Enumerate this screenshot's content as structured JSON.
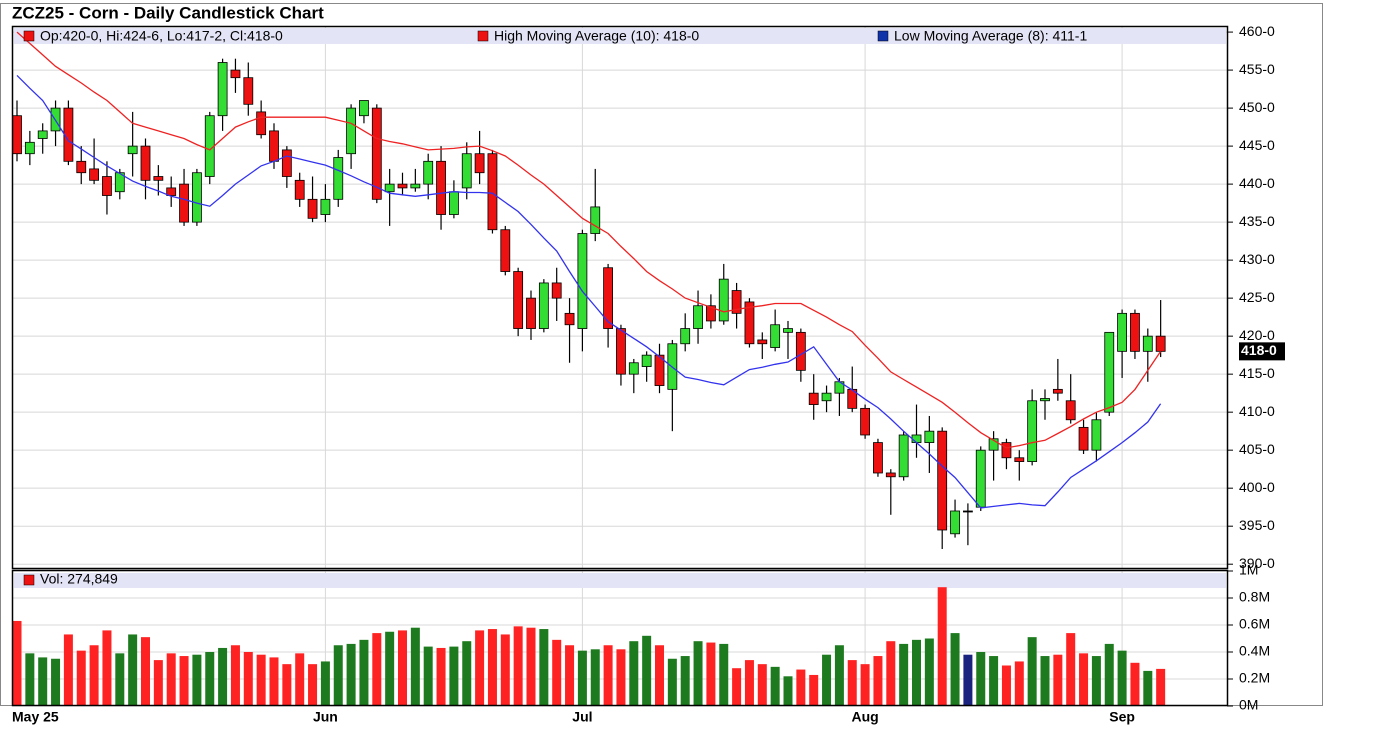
{
  "chart_data": {
    "type": "candlestick",
    "title": "ZCZ25 - Corn - Daily Candlestick Chart",
    "ohlc_legend": "Op:420-0, Hi:424-6, Lo:417-2, Cl:418-0",
    "last_label": "418-0",
    "grid": true,
    "up_color": "#33dd33",
    "down_color": "#ee1111",
    "categories": [
      "May 25",
      null,
      null,
      null,
      null,
      null,
      null,
      null,
      null,
      null,
      null,
      null,
      null,
      null,
      null,
      null,
      null,
      null,
      null,
      null,
      null,
      null,
      null,
      null,
      "Jun",
      null,
      null,
      null,
      null,
      null,
      null,
      null,
      null,
      null,
      null,
      null,
      null,
      null,
      null,
      null,
      null,
      null,
      null,
      null,
      "Jul",
      null,
      null,
      null,
      null,
      null,
      null,
      null,
      null,
      null,
      null,
      null,
      null,
      null,
      null,
      null,
      null,
      null,
      null,
      null,
      null,
      null,
      "Aug",
      null,
      null,
      null,
      null,
      null,
      null,
      null,
      null,
      null,
      null,
      null,
      null,
      null,
      null,
      null,
      null,
      null,
      null,
      null,
      "Sep",
      null,
      null,
      null
    ],
    "open": [
      449,
      444,
      446,
      447,
      450,
      443,
      442,
      441,
      439,
      444,
      445,
      441,
      439.5,
      440,
      435,
      441,
      449,
      455,
      454,
      449.5,
      447,
      444.5,
      440.5,
      438,
      436,
      438,
      444,
      449,
      450,
      439,
      440,
      439.5,
      440,
      443,
      436,
      439.5,
      444,
      444,
      434,
      428.5,
      425,
      421,
      427,
      423,
      421,
      433.5,
      429,
      421,
      415,
      416,
      417.5,
      413,
      419,
      421,
      424,
      422,
      426,
      424.5,
      419.5,
      418.5,
      420.5,
      420.5,
      412.5,
      411.5,
      412.5,
      413,
      410.5,
      406,
      402,
      401.5,
      406,
      406,
      407.5,
      394,
      397,
      397.5,
      405,
      406,
      404,
      403.5,
      411.5,
      413,
      411.5,
      408,
      405,
      410,
      418,
      423,
      418,
      420
    ],
    "high": [
      451,
      447,
      448,
      451,
      451,
      445,
      446,
      443,
      442,
      449.5,
      446,
      442.5,
      441,
      442,
      442,
      449.5,
      456.5,
      456.5,
      456,
      451,
      448,
      445,
      441.5,
      441,
      440,
      444.5,
      450.5,
      451,
      450.5,
      442,
      441.5,
      442,
      444,
      445,
      440.5,
      445.5,
      447,
      444.5,
      434.5,
      429,
      426,
      427.5,
      429,
      425,
      434,
      442,
      429.5,
      421.5,
      417,
      418,
      419,
      419.5,
      423,
      426,
      425.5,
      429.5,
      427,
      425,
      420.5,
      423.5,
      422,
      421,
      415,
      413.5,
      414.5,
      416,
      411,
      406.5,
      402.5,
      407.5,
      411,
      409.5,
      408,
      398.5,
      398,
      405.5,
      407.5,
      406.5,
      405,
      413,
      413,
      417,
      415,
      409,
      410,
      420.5,
      423.5,
      423.5,
      421,
      424.75
    ],
    "low": [
      443,
      442.5,
      444,
      445,
      442.5,
      440,
      440,
      436,
      438,
      441,
      438,
      438.5,
      437,
      434.5,
      434.5,
      440,
      447,
      452,
      449,
      446,
      442,
      439.5,
      437,
      435,
      435,
      437,
      442,
      448,
      437.5,
      434.5,
      438.5,
      439,
      438,
      434,
      435.5,
      438,
      440,
      433.5,
      428,
      420,
      419.5,
      420.5,
      422,
      416.5,
      418,
      432.5,
      418.5,
      413.5,
      412.5,
      414,
      412.5,
      407.5,
      418,
      419,
      421,
      421.5,
      421,
      418.5,
      417,
      418,
      417,
      414,
      409,
      410,
      409.5,
      410,
      406.5,
      401.5,
      396.5,
      401,
      404,
      402,
      392,
      393.5,
      392.5,
      397,
      401,
      402.5,
      401,
      403,
      409,
      411.5,
      408.5,
      404.5,
      403.5,
      409.5,
      414.5,
      417,
      414,
      417.25
    ],
    "close": [
      444,
      445.5,
      447,
      450,
      443,
      441.5,
      440.5,
      438.5,
      441.5,
      445,
      440.5,
      440.5,
      438.5,
      435,
      441.5,
      449,
      456,
      454,
      450.5,
      446.5,
      443,
      441,
      438,
      435.5,
      438,
      443.5,
      450,
      451,
      438,
      440,
      439.5,
      440,
      443,
      436,
      439,
      444,
      441.5,
      434,
      428.5,
      421,
      421,
      427,
      425,
      421.5,
      433.5,
      437,
      421,
      415,
      416.5,
      417.5,
      413.5,
      419,
      421,
      424,
      422,
      427.5,
      423,
      419,
      419,
      421.5,
      421,
      415.5,
      411,
      412.5,
      414,
      410.5,
      407,
      402,
      401.5,
      407,
      407,
      407.5,
      394.5,
      397,
      397,
      405,
      406.5,
      404,
      403.5,
      411.5,
      411.8,
      412.5,
      409,
      405,
      409,
      420.5,
      423,
      418,
      420,
      418
    ],
    "series": [
      {
        "name": "High Moving Average (10): 418-0",
        "color": "#ee2222",
        "values": [
          460,
          458.5,
          457,
          455.5,
          454.4,
          453.3,
          452.1,
          451,
          449.5,
          448,
          447.5,
          447,
          446.5,
          446,
          445.2,
          444.5,
          446,
          447.5,
          448.2,
          448.8,
          448.8,
          448.8,
          448.8,
          448.8,
          448.8,
          448.4,
          448,
          447,
          446,
          445.6,
          445.3,
          444.9,
          444.5,
          444.6,
          444.7,
          444.9,
          445,
          444.4,
          443.7,
          442.5,
          441.2,
          440,
          438.5,
          437,
          435.5,
          434.5,
          433.5,
          431.8,
          430.2,
          428.5,
          427.3,
          426.2,
          425,
          424.4,
          423.8,
          423.2,
          423.5,
          423.8,
          424,
          424.3,
          424.3,
          424.3,
          423.4,
          422.5,
          421.5,
          420.6,
          418.8,
          417.1,
          415.3,
          414.3,
          413.3,
          412.3,
          411.3,
          410,
          408.6,
          407.3,
          406.3,
          405.3,
          405.6,
          406,
          406.3,
          407.2,
          408.1,
          409.1,
          410,
          410.6,
          411.3,
          413,
          415.5,
          418
        ]
      },
      {
        "name": "Low Moving Average (8): 411-1",
        "color": "#3333ee",
        "values": [
          454.3,
          452.6,
          451,
          448.4,
          445.7,
          444.6,
          443.5,
          442.4,
          441.4,
          440.4,
          439.7,
          439.1,
          438.4,
          438,
          437.5,
          437.1,
          438.5,
          440,
          441.2,
          442.4,
          443,
          443.7,
          443.3,
          442.9,
          442.5,
          441.8,
          441.1,
          440.3,
          439.6,
          438.8,
          438.6,
          438.4,
          438.6,
          438.8,
          439,
          438.9,
          438.9,
          438.8,
          437.6,
          436.4,
          434.7,
          432.9,
          431.2,
          428.5,
          425.9,
          423.9,
          421.9,
          420.8,
          419.7,
          418.6,
          417.3,
          415.9,
          414.6,
          414.3,
          413.9,
          413.6,
          414.6,
          415.6,
          415.9,
          416.3,
          416.6,
          417.6,
          418.6,
          416.3,
          414,
          412.9,
          411.7,
          410.6,
          409.1,
          407.5,
          406,
          404.5,
          402.9,
          401.4,
          399.4,
          397.4,
          397.6,
          397.8,
          398,
          397.8,
          397.7,
          399.5,
          401.4,
          402.5,
          403.6,
          404.8,
          406,
          407.3,
          408.7,
          411.1
        ]
      }
    ],
    "ylim": [
      389.5,
      460.8
    ],
    "yticks": [
      {
        "value": 390,
        "label": "390-0"
      },
      {
        "value": 395,
        "label": "395-0"
      },
      {
        "value": 400,
        "label": "400-0"
      },
      {
        "value": 405,
        "label": "405-0"
      },
      {
        "value": 410,
        "label": "410-0"
      },
      {
        "value": 415,
        "label": "415-0"
      },
      {
        "value": 420,
        "label": "420-0"
      },
      {
        "value": 425,
        "label": "425-0"
      },
      {
        "value": 430,
        "label": "430-0"
      },
      {
        "value": 435,
        "label": "435-0"
      },
      {
        "value": 440,
        "label": "440-0"
      },
      {
        "value": 445,
        "label": "445-0"
      },
      {
        "value": 450,
        "label": "450-0"
      },
      {
        "value": 455,
        "label": "455-0"
      },
      {
        "value": 460,
        "label": "460-0"
      }
    ],
    "volume": {
      "legend": "Vol: 274,849",
      "up_color": "#1e7a1e",
      "down_color": "#ff2222",
      "flat_color": "#1a237e",
      "values": [
        630000,
        390000,
        360000,
        350000,
        530000,
        410000,
        450000,
        560000,
        390000,
        530000,
        510000,
        340000,
        390000,
        370000,
        380000,
        400000,
        430000,
        450000,
        400000,
        380000,
        360000,
        310000,
        390000,
        310000,
        330000,
        450000,
        460000,
        490000,
        540000,
        550000,
        560000,
        580000,
        440000,
        430000,
        440000,
        480000,
        560000,
        570000,
        530000,
        590000,
        580000,
        570000,
        490000,
        450000,
        410000,
        420000,
        450000,
        420000,
        480000,
        520000,
        450000,
        350000,
        370000,
        480000,
        470000,
        460000,
        280000,
        340000,
        310000,
        290000,
        220000,
        270000,
        230000,
        380000,
        450000,
        340000,
        310000,
        370000,
        480000,
        460000,
        490000,
        500000,
        880000,
        540000,
        380000,
        400000,
        370000,
        300000,
        330000,
        510000,
        370000,
        380000,
        540000,
        390000,
        370000,
        460000,
        410000,
        320000,
        260000,
        274849
      ],
      "ylim": [
        0,
        1000000
      ],
      "yticks": [
        {
          "value": 0,
          "label": "0M"
        },
        {
          "value": 200000,
          "label": "0.2M"
        },
        {
          "value": 400000,
          "label": "0.4M"
        },
        {
          "value": 600000,
          "label": "0.6M"
        },
        {
          "value": 800000,
          "label": "0.8M"
        },
        {
          "value": 1000000,
          "label": "1M"
        }
      ]
    }
  }
}
